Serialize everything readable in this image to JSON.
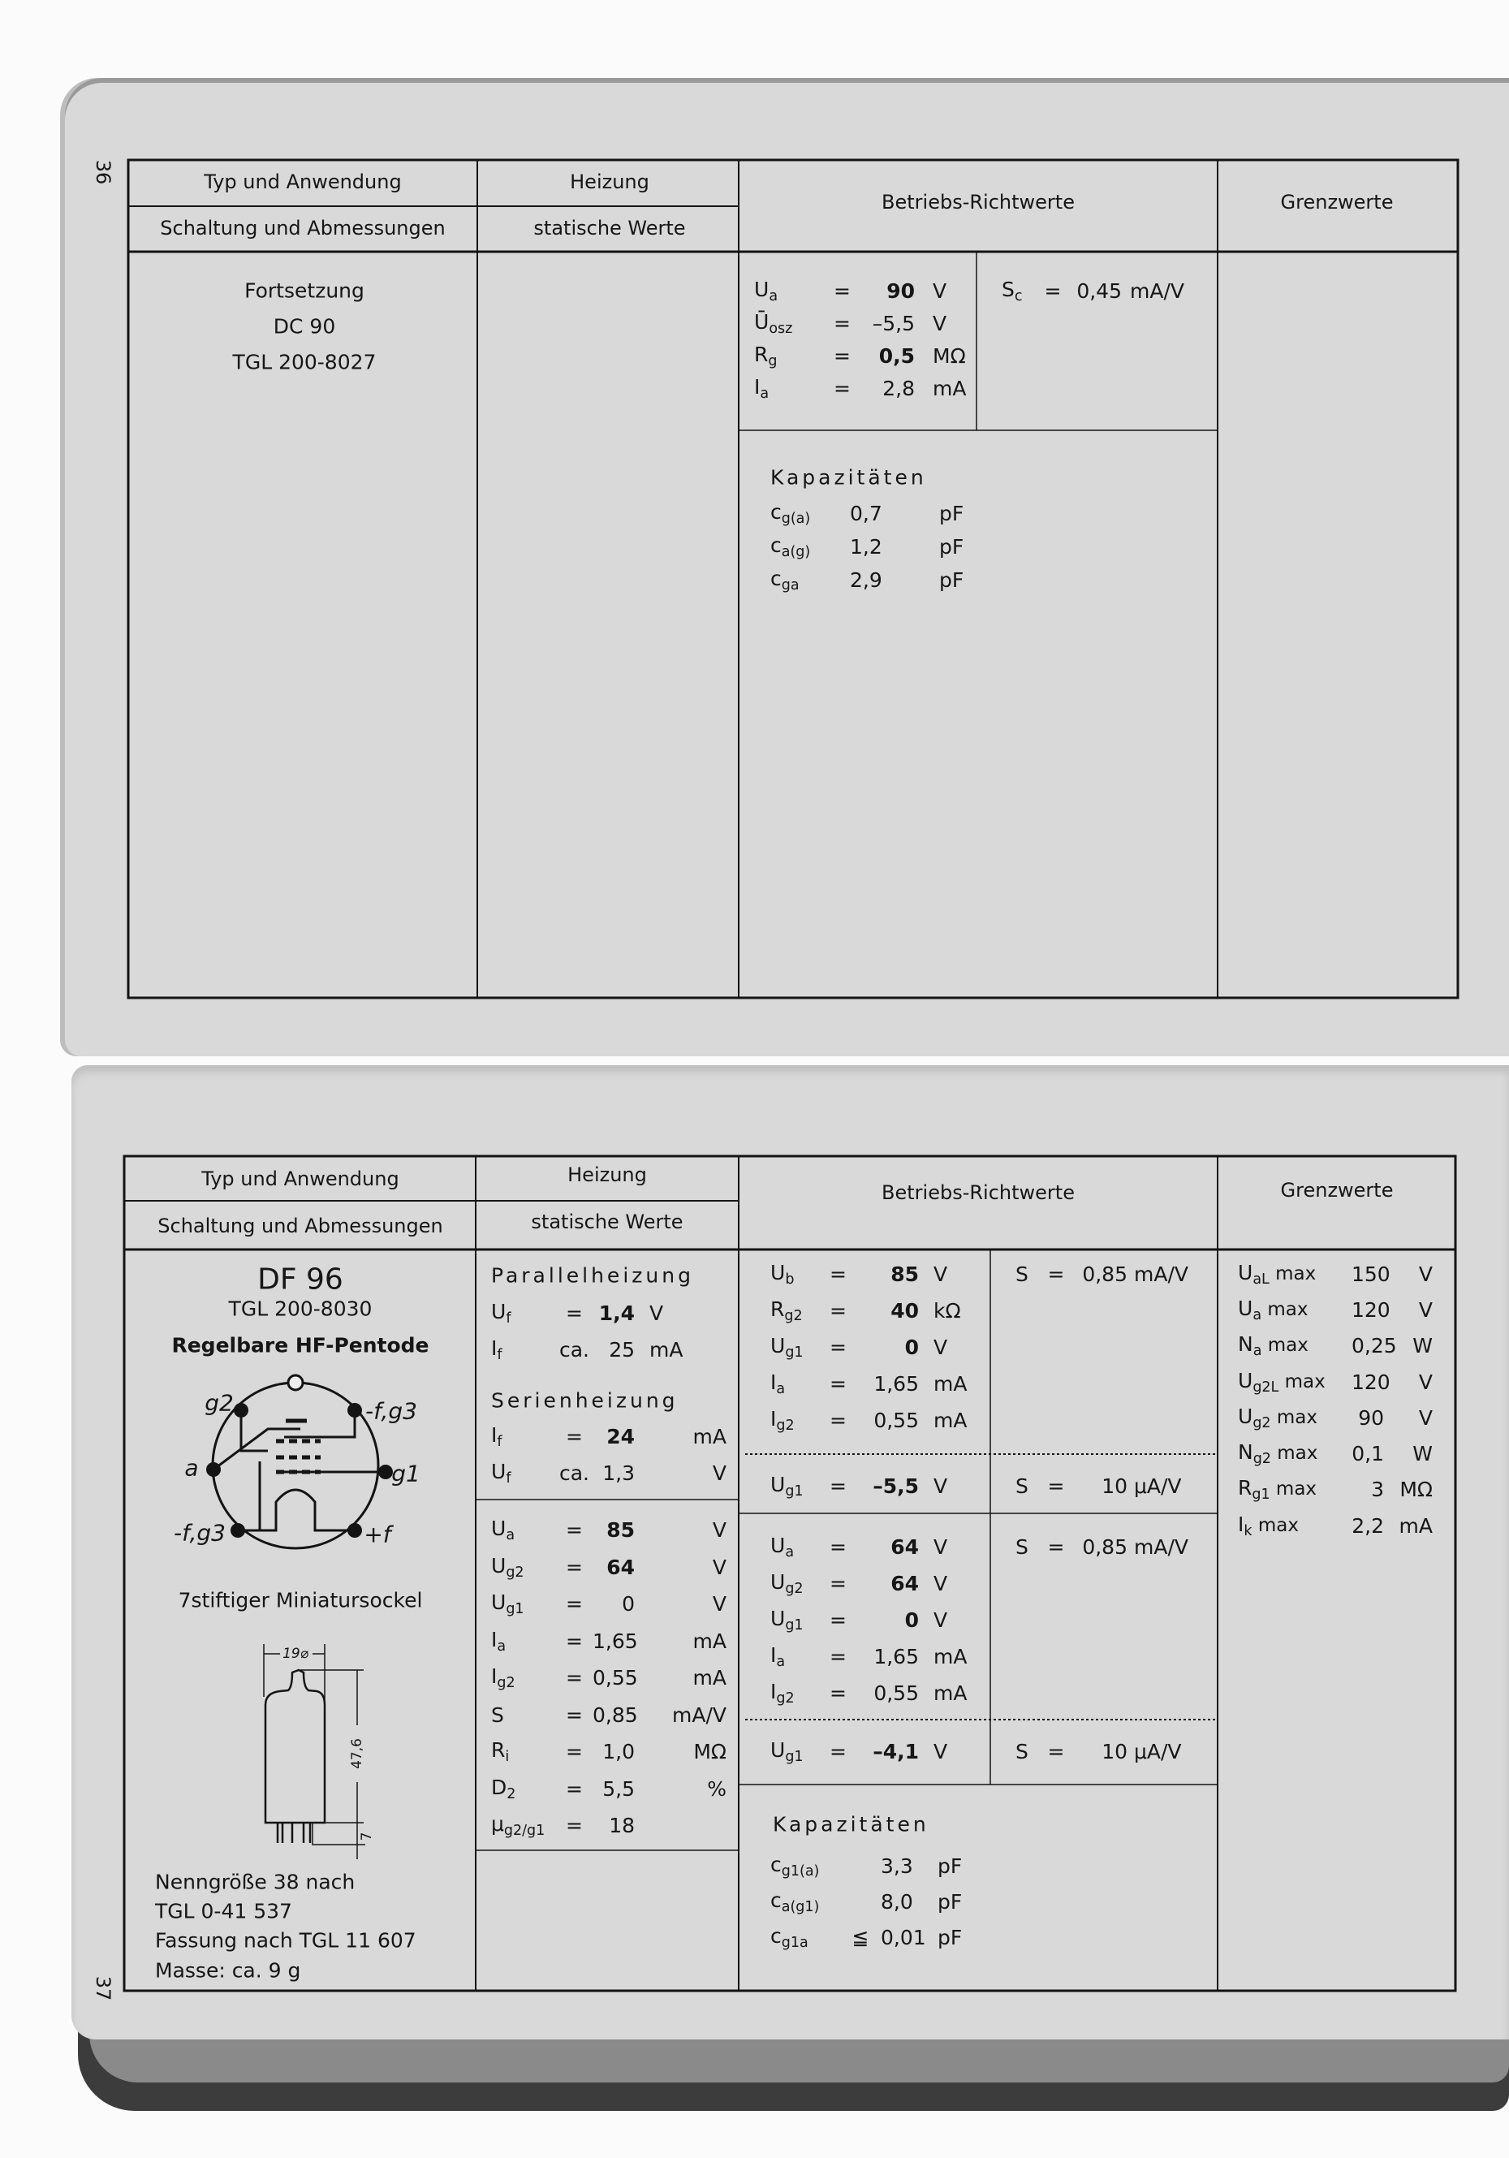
{
  "top_page": {
    "page_number": "36",
    "header": {
      "typ": "Typ und Anwendung",
      "schaltung": "Schaltung und Abmessungen",
      "heizung": "Heizung",
      "statisch": "statische Werte",
      "betriebs": "Betriebs-Richtwerte",
      "grenz": "Grenzwerte"
    },
    "type_lines": [
      "Fortsetzung",
      "DC 90",
      "TGL 200-8027"
    ],
    "betriebs": [
      {
        "sym": "U",
        "sub": "a",
        "op": "=",
        "val": "90",
        "unit": "V",
        "bold": true
      },
      {
        "sym": "Ū",
        "sub": "osz",
        "op": "=",
        "val": "–5,5",
        "unit": "V"
      },
      {
        "sym": "R",
        "sub": "g",
        "op": "=",
        "val": "0,5",
        "unit": "MΩ",
        "bold": true
      },
      {
        "sym": "I",
        "sub": "a",
        "op": "=",
        "val": "2,8",
        "unit": "mA"
      }
    ],
    "steilheit": [
      {
        "sym": "S",
        "sub": "c",
        "op": "=",
        "val": "0,45",
        "unit": "mA/V"
      }
    ],
    "kapazitaeten_title": "Kapazitäten",
    "kapazitaeten": [
      {
        "sym": "c",
        "sub": "g(a)",
        "op": "",
        "val": "0,7",
        "unit": "pF"
      },
      {
        "sym": "c",
        "sub": "a(g)",
        "op": "",
        "val": "1,2",
        "unit": "pF"
      },
      {
        "sym": "c",
        "sub": "ga",
        "op": "",
        "val": "2,9",
        "unit": "pF"
      }
    ]
  },
  "bottom_page": {
    "page_number": "37",
    "header": {
      "typ": "Typ und Anwendung",
      "schaltung": "Schaltung und Abmessungen",
      "heizung": "Heizung",
      "statisch": "statische Werte",
      "betriebs": "Betriebs-Richtwerte",
      "grenz": "Grenzwerte"
    },
    "tube": {
      "name": "DF 96",
      "tgl": "TGL 200-8030",
      "description": "Regelbare HF-Pentode",
      "pins": {
        "g2": "g2",
        "f_g3_top": "-f,g3",
        "a": "a",
        "g1": "g1",
        "f_g3_bottom": "-f,g3",
        "plus_f": "+f"
      },
      "socket": "7stiftiger Miniatursockel",
      "dimensions": {
        "diameter": "19⌀",
        "height": "47,6",
        "pins": "7"
      },
      "notes": [
        "Nenngröße 38 nach",
        "TGL 0-41 537",
        "Fassung nach TGL 11 607",
        "Masse: ca. 9 g"
      ]
    },
    "heizung": {
      "parallel_title": "Parallelheizung",
      "parallel": [
        {
          "sym": "U",
          "sub": "f",
          "op": "=",
          "val": "1,4",
          "unit": "V",
          "bold": true
        },
        {
          "sym": "I",
          "sub": "f",
          "op": "ca.",
          "val": "25",
          "unit": "mA"
        }
      ],
      "serien_title": "Serienheizung",
      "serien": [
        {
          "sym": "I",
          "sub": "f",
          "op": "=",
          "val": "24",
          "unit": "mA",
          "bold": true
        },
        {
          "sym": "U",
          "sub": "f",
          "op": "ca.",
          "val": "1,3",
          "unit": "V"
        }
      ],
      "statisch": [
        {
          "sym": "U",
          "sub": "a",
          "op": "=",
          "val": "85",
          "unit": "V",
          "bold": true
        },
        {
          "sym": "U",
          "sub": "g2",
          "op": "=",
          "val": "64",
          "unit": "V",
          "bold": true
        },
        {
          "sym": "U",
          "sub": "g1",
          "op": "=",
          "val": "0",
          "unit": "V"
        },
        {
          "sym": "I",
          "sub": "a",
          "op": "=",
          "val": "1,65",
          "unit": "mA"
        },
        {
          "sym": "I",
          "sub": "g2",
          "op": "=",
          "val": "0,55",
          "unit": "mA"
        },
        {
          "sym": "S",
          "sub": "",
          "op": "=",
          "val": "0,85",
          "unit": "mA/V"
        },
        {
          "sym": "R",
          "sub": "i",
          "op": "=",
          "val": "1,0",
          "unit": "MΩ"
        },
        {
          "sym": "D",
          "sub": "2",
          "op": "=",
          "val": "5,5",
          "unit": "%"
        },
        {
          "sym": "μ",
          "sub": "g2/g1",
          "op": "=",
          "val": "18",
          "unit": ""
        }
      ]
    },
    "betriebs": {
      "block1": [
        {
          "sym": "U",
          "sub": "b",
          "op": "=",
          "val": "85",
          "unit": "V",
          "bold": true
        },
        {
          "sym": "R",
          "sub": "g2",
          "op": "=",
          "val": "40",
          "unit": "kΩ",
          "bold": true
        },
        {
          "sym": "U",
          "sub": "g1",
          "op": "=",
          "val": "0",
          "unit": "V",
          "bold": true
        },
        {
          "sym": "I",
          "sub": "a",
          "op": "=",
          "val": "1,65",
          "unit": "mA"
        },
        {
          "sym": "I",
          "sub": "g2",
          "op": "=",
          "val": "0,55",
          "unit": "mA"
        }
      ],
      "s1": [
        {
          "sym": "S",
          "sub": "",
          "op": "=",
          "val": "0,85",
          "unit": "mA/V"
        }
      ],
      "block2": [
        {
          "sym": "U",
          "sub": "g1",
          "op": "=",
          "val": "–5,5",
          "unit": "V",
          "bold": true
        }
      ],
      "s2": [
        {
          "sym": "S",
          "sub": "",
          "op": "=",
          "val": "10",
          "unit": "μA/V"
        }
      ],
      "block3": [
        {
          "sym": "U",
          "sub": "a",
          "op": "=",
          "val": "64",
          "unit": "V",
          "bold": true
        },
        {
          "sym": "U",
          "sub": "g2",
          "op": "=",
          "val": "64",
          "unit": "V",
          "bold": true
        },
        {
          "sym": "U",
          "sub": "g1",
          "op": "=",
          "val": "0",
          "unit": "V",
          "bold": true
        },
        {
          "sym": "I",
          "sub": "a",
          "op": "=",
          "val": "1,65",
          "unit": "mA"
        },
        {
          "sym": "I",
          "sub": "g2",
          "op": "=",
          "val": "0,55",
          "unit": "mA"
        }
      ],
      "s3": [
        {
          "sym": "S",
          "sub": "",
          "op": "=",
          "val": "0,85",
          "unit": "mA/V"
        }
      ],
      "block4": [
        {
          "sym": "U",
          "sub": "g1",
          "op": "=",
          "val": "–4,1",
          "unit": "V",
          "bold": true
        }
      ],
      "s4": [
        {
          "sym": "S",
          "sub": "",
          "op": "=",
          "val": "10",
          "unit": "μA/V"
        }
      ],
      "kapazitaeten_title": "Kapazitäten",
      "kapazitaeten": [
        {
          "sym": "c",
          "sub": "g1(a)",
          "op": "",
          "val": "3,3",
          "unit": "pF"
        },
        {
          "sym": "c",
          "sub": "a(g1)",
          "op": "",
          "val": "8,0",
          "unit": "pF"
        },
        {
          "sym": "c",
          "sub": "g1a",
          "op": "≦",
          "val": "0,01",
          "unit": "pF"
        }
      ]
    },
    "grenzwerte": [
      {
        "sym": "U",
        "sub": "aL",
        "suffix": " max",
        "val": "150",
        "unit": "V"
      },
      {
        "sym": "U",
        "sub": "a",
        "suffix": " max",
        "val": "120",
        "unit": "V"
      },
      {
        "sym": "N",
        "sub": "a",
        "suffix": " max",
        "val": "0,25",
        "unit": "W"
      },
      {
        "sym": "U",
        "sub": "g2L",
        "suffix": " max",
        "val": "120",
        "unit": "V"
      },
      {
        "sym": "U",
        "sub": "g2",
        "suffix": " max",
        "val": "90",
        "unit": "V"
      },
      {
        "sym": "N",
        "sub": "g2",
        "suffix": " max",
        "val": "0,1",
        "unit": "W"
      },
      {
        "sym": "R",
        "sub": "g1",
        "suffix": " max",
        "val": "3",
        "unit": "MΩ"
      },
      {
        "sym": "I",
        "sub": "k",
        "suffix": " max",
        "val": "2,2",
        "unit": "mA"
      }
    ]
  }
}
